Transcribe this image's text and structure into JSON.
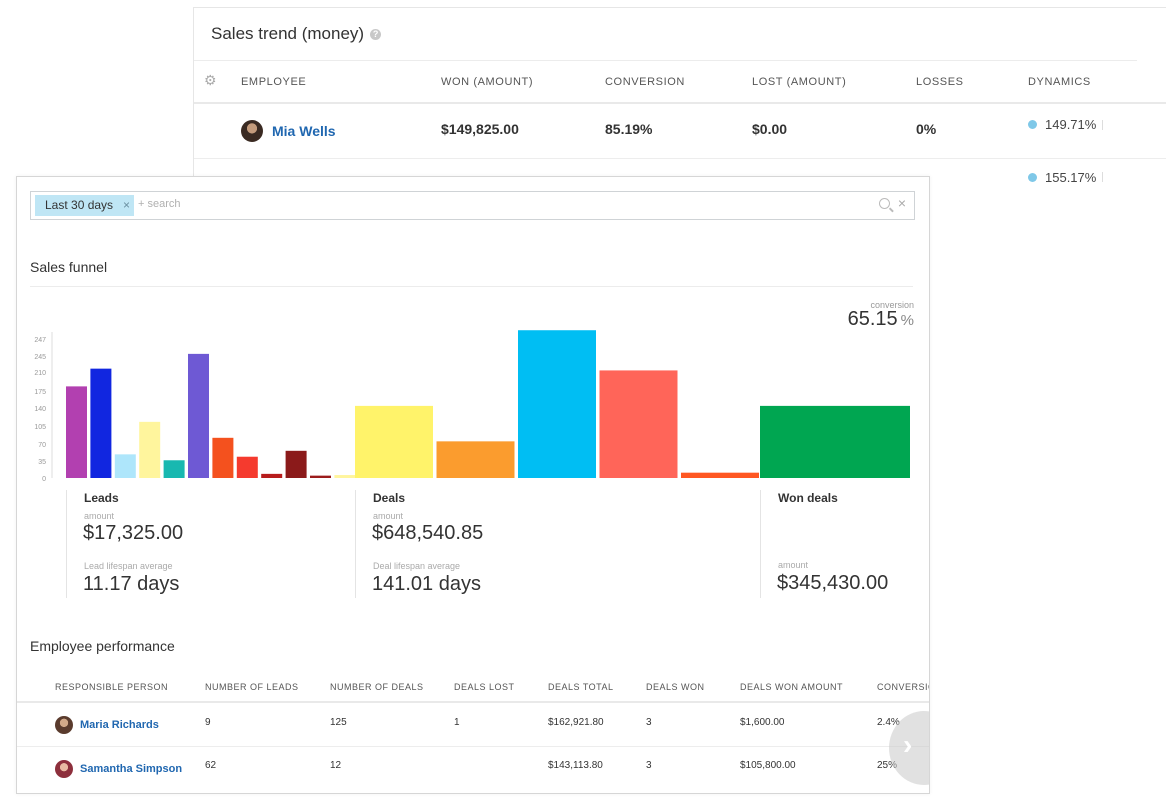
{
  "sales_trend": {
    "title": "Sales trend (money)",
    "columns": [
      "EMPLOYEE",
      "WON (AMOUNT)",
      "CONVERSION",
      "LOST (AMOUNT)",
      "LOSSES",
      "DYNAMICS"
    ],
    "rows": [
      {
        "employee": "Mia Wells",
        "won": "$149,825.00",
        "conversion": "85.19%",
        "lost": "$0.00",
        "losses": "0%",
        "dynamics": "149.71%"
      },
      {
        "dynamics": "155.17%"
      }
    ]
  },
  "filter": {
    "chip": "Last 30 days",
    "chip_remove": "×",
    "placeholder": "+ search"
  },
  "funnel": {
    "title": "Sales funnel",
    "conversion_label": "conversion",
    "conversion_value": "65.15",
    "conversion_unit": "%"
  },
  "chart_data": {
    "type": "bar",
    "yticks": [
      0,
      35,
      70,
      105,
      140,
      175,
      210,
      245,
      247
    ],
    "ylim": [
      0,
      247
    ],
    "grid": false,
    "leads_values": [
      155,
      185,
      40,
      95,
      30,
      210,
      68,
      36,
      7,
      46,
      4,
      5
    ],
    "leads_colors": [
      "#b240b0",
      "#1126e0",
      "#aee6fb",
      "#fff59d",
      "#18b8b0",
      "#6e59d4",
      "#f4511e",
      "#f53a2e",
      "#b71c1c",
      "#8b1a1a",
      "#9b1c1c",
      "#fff59d"
    ],
    "deals_values": [
      122,
      62,
      250,
      182,
      9
    ],
    "deals_colors": [
      "#fff36a",
      "#fb9c2e",
      "#00bef3",
      "#ff6559",
      "#ff5722"
    ],
    "won_values": [
      122
    ],
    "won_colors": [
      "#00a651"
    ]
  },
  "stats": {
    "leads": {
      "title": "Leads",
      "amount_label": "amount",
      "amount": "$17,325.00",
      "lifespan_label": "Lead lifespan average",
      "lifespan": "11.17 days"
    },
    "deals": {
      "title": "Deals",
      "amount_label": "amount",
      "amount": "$648,540.85",
      "lifespan_label": "Deal lifespan average",
      "lifespan": "141.01 days"
    },
    "won": {
      "title": "Won deals",
      "amount_label": "amount",
      "amount": "$345,430.00"
    }
  },
  "performance": {
    "title": "Employee performance",
    "columns": [
      "RESPONSIBLE PERSON",
      "NUMBER OF LEADS",
      "NUMBER OF DEALS",
      "DEALS LOST",
      "DEALS TOTAL",
      "DEALS WON",
      "DEALS WON AMOUNT",
      "CONVERSIO"
    ],
    "rows": [
      {
        "name": "Maria Richards",
        "leads": "9",
        "deals": "125",
        "lost": "1",
        "total": "$162,921.80",
        "won": "3",
        "won_amount": "$1,600.00",
        "conversion": "2.4%"
      },
      {
        "name": "Samantha Simpson",
        "leads": "62",
        "deals": "12",
        "lost": "",
        "total": "$143,113.80",
        "won": "3",
        "won_amount": "$105,800.00",
        "conversion": "25%"
      }
    ]
  }
}
